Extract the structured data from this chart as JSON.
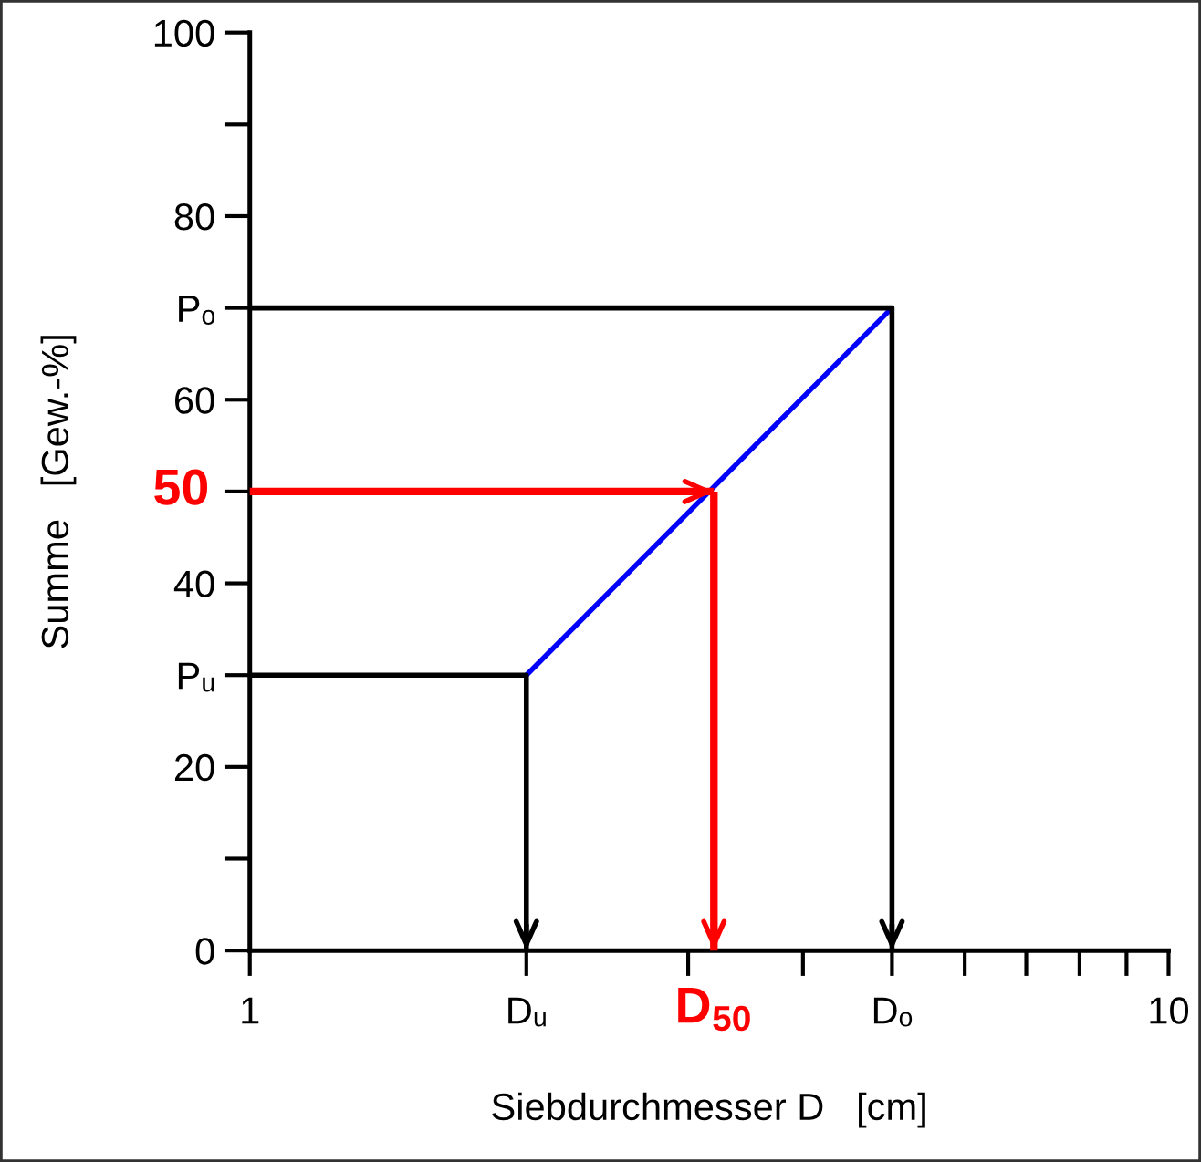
{
  "chart_data": {
    "type": "line",
    "xlabel": "Siebdurchmesser D   [cm]",
    "ylabel": "Summe   [Gew.-%]",
    "log": "x",
    "xlim": [
      1,
      10
    ],
    "xticks": [
      1,
      {
        "value": 2,
        "label": "Dᵤ"
      },
      {
        "value": 3,
        "label": null
      },
      {
        "value": 4,
        "label": null
      },
      {
        "value": 5,
        "label": "Dₒ"
      },
      {
        "value": 6,
        "label": null
      },
      {
        "value": 7,
        "label": null
      },
      {
        "value": 8,
        "label": null
      },
      {
        "value": 9,
        "label": null
      },
      10
    ],
    "ylim": [
      0,
      100
    ],
    "yticks": [
      0,
      {
        "value": 10,
        "label": null
      },
      20,
      {
        "value": 30,
        "label": "Pᵤ"
      },
      40,
      {
        "value": 50,
        "label": null
      },
      60,
      {
        "value": 70,
        "label": "Pₒ"
      },
      80,
      {
        "value": 90,
        "label": null
      },
      100
    ],
    "grid": false,
    "legend": false,
    "marker": "none",
    "line_style": "solid",
    "series": [
      {
        "color": "#0000ff",
        "x": [
          2,
          5
        ],
        "values": [
          30,
          70
        ]
      },
      {
        "color": "#000000",
        "x": [
          1,
          2,
          2
        ],
        "values": [
          30,
          30,
          0
        ]
      },
      {
        "color": "#000000",
        "x": [
          1,
          5,
          5
        ],
        "values": [
          70,
          70,
          0
        ]
      },
      {
        "color": "#ff0000",
        "x": [
          1,
          3.2
        ],
        "values": [
          50,
          50
        ]
      },
      {
        "color": "#ff0000",
        "x": [
          3.2,
          3.2
        ],
        "values": [
          50,
          0
        ]
      }
    ],
    "annotations": [
      {
        "text": "50",
        "x": 1,
        "y": 50
      },
      {
        "text": "D$_{50}$",
        "x": 3.2,
        "y": 0
      }
    ]
  }
}
